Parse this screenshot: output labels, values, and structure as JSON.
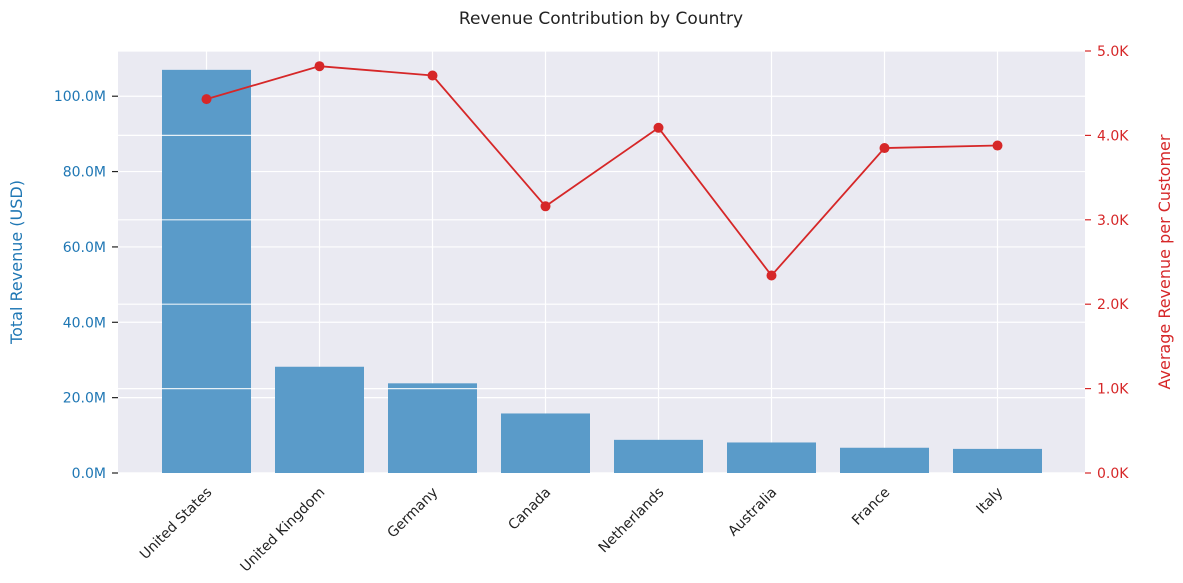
{
  "chart_data": {
    "type": "bar+line",
    "title": "Revenue Contribution by Country",
    "categories": [
      "United States",
      "United Kingdom",
      "Germany",
      "Canada",
      "Netherlands",
      "Australia",
      "France",
      "Italy"
    ],
    "series": [
      {
        "name": "Total Revenue (USD)",
        "type": "bar",
        "axis": "left",
        "values": [
          107000000,
          28200000,
          23800000,
          15800000,
          8800000,
          8100000,
          6700000,
          6400000
        ]
      },
      {
        "name": "Average Revenue per Customer",
        "type": "line",
        "axis": "right",
        "values": [
          4430,
          4820,
          4710,
          3160,
          4090,
          2340,
          3850,
          3880
        ]
      }
    ],
    "ylabel": "Total Revenue (USD)",
    "y2label": "Average Revenue per Customer",
    "ylim": [
      0,
      112000000
    ],
    "y2lim": [
      0,
      5000
    ],
    "yticks": [
      0,
      20000000,
      40000000,
      60000000,
      80000000,
      100000000
    ],
    "ytick_labels": [
      "0.0M",
      "20.0M",
      "40.0M",
      "60.0M",
      "80.0M",
      "100.0M"
    ],
    "y2ticks": [
      0,
      1000,
      2000,
      3000,
      4000,
      5000
    ],
    "y2tick_labels": [
      "0.0K",
      "1.0K",
      "2.0K",
      "3.0K",
      "4.0K",
      "5.0K"
    ],
    "grid": true,
    "colors": {
      "bar": "#5a9bc9",
      "line": "#d62728",
      "left_axis": "#1f77b4",
      "right_axis": "#d62728",
      "background": "#eaeaf2",
      "grid": "#ffffff"
    }
  }
}
